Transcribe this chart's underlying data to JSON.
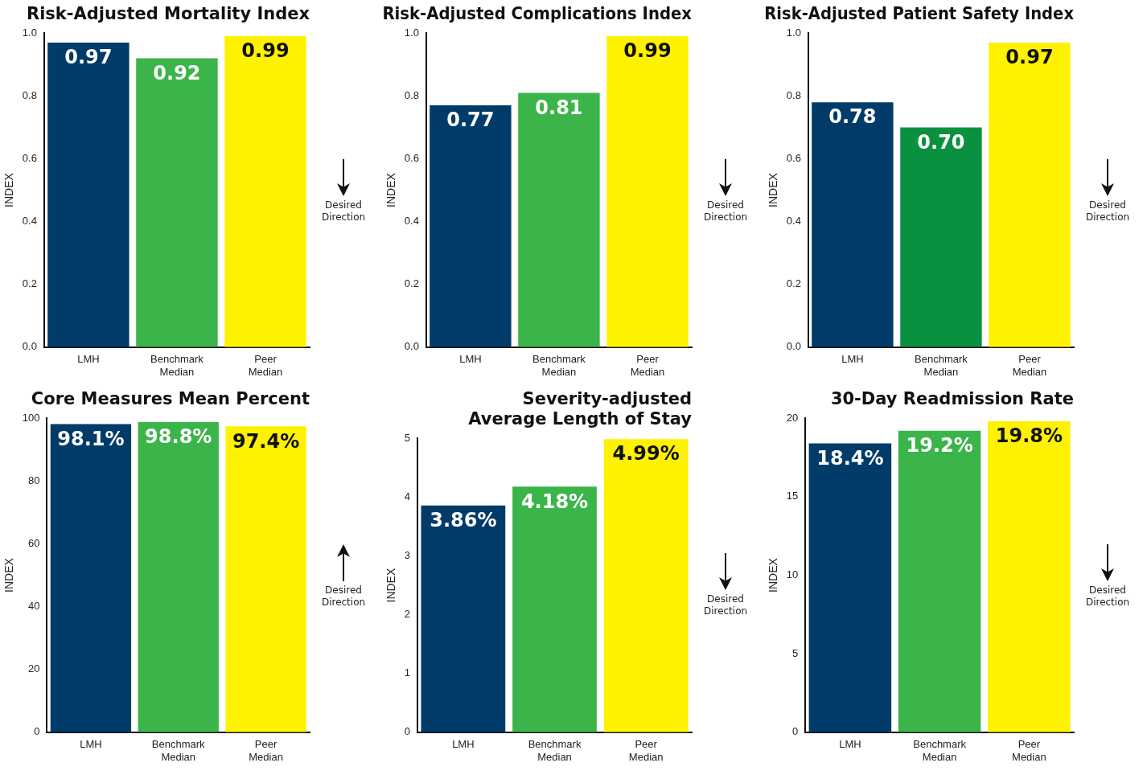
{
  "chart_data": [
    {
      "type": "bar",
      "title": "Risk-Adjusted Mortality Index",
      "ylabel": "INDEX",
      "categories": [
        "LMH",
        "Benchmark Median",
        "Peer Median"
      ],
      "values": [
        0.97,
        0.92,
        0.99
      ],
      "colors": [
        "#003b69",
        "#3bb54a",
        "#fff200"
      ],
      "ylim": [
        0,
        1
      ],
      "yticks": [
        {
          "value": 0,
          "label": "0.0"
        },
        {
          "value": 0.2,
          "label": "0.2"
        },
        {
          "value": 0.4,
          "label": "0.4"
        },
        {
          "value": 0.6,
          "label": "0.6"
        },
        {
          "value": 0.8,
          "label": "0.8"
        },
        {
          "value": 1,
          "label": "1.0"
        }
      ],
      "value_labels": [
        "0.97",
        "0.92",
        "0.99"
      ],
      "annotations": [
        "Desired Direction"
      ],
      "grid": false,
      "legend": false
    },
    {
      "type": "bar",
      "title": "Risk-Adjusted Complications Index",
      "ylabel": "INDEX",
      "categories": [
        "LMH",
        "Benchmark Median",
        "Peer Median"
      ],
      "values": [
        0.77,
        0.81,
        0.99
      ],
      "colors": [
        "#003b69",
        "#3bb54a",
        "#fff200"
      ],
      "ylim": [
        0,
        1
      ],
      "yticks": [
        {
          "value": 0,
          "label": "0.0"
        },
        {
          "value": 0.2,
          "label": "0.2"
        },
        {
          "value": 0.4,
          "label": "0.4"
        },
        {
          "value": 0.6,
          "label": "0.6"
        },
        {
          "value": 0.8,
          "label": "0.8"
        },
        {
          "value": 1,
          "label": "1.0"
        }
      ],
      "value_labels": [
        "0.77",
        "0.81",
        "0.99"
      ],
      "annotations": [
        "Desired Direction"
      ],
      "grid": false,
      "legend": false
    },
    {
      "type": "bar",
      "title": "Risk-Adjusted Patient Safety Index",
      "ylabel": "INDEX",
      "categories": [
        "LMH",
        "Benchmark Median",
        "Peer Median"
      ],
      "values": [
        0.78,
        0.7,
        0.97
      ],
      "colors": [
        "#003b69",
        "#0a9140",
        "#fff200"
      ],
      "ylim": [
        0,
        1
      ],
      "yticks": [
        {
          "value": 0,
          "label": "0.0"
        },
        {
          "value": 0.2,
          "label": "0.2"
        },
        {
          "value": 0.4,
          "label": "0.4"
        },
        {
          "value": 0.6,
          "label": "0.6"
        },
        {
          "value": 0.8,
          "label": "0.8"
        },
        {
          "value": 1,
          "label": "1.0"
        }
      ],
      "value_labels": [
        "0.78",
        "0.70",
        "0.97"
      ],
      "annotations": [
        "Desired Direction"
      ],
      "grid": false,
      "legend": false
    },
    {
      "type": "bar",
      "title": "Core Measures Mean Percent",
      "ylabel": "INDEX",
      "categories": [
        "LMH",
        "Benchmark Median",
        "Peer Median"
      ],
      "values": [
        98.1,
        98.8,
        97.4
      ],
      "colors": [
        "#003b69",
        "#3bb54a",
        "#fff200"
      ],
      "ylim": [
        0,
        100
      ],
      "yticks": [
        0,
        20,
        40,
        60,
        80,
        100
      ],
      "value_labels": [
        "98.1%",
        "98.8%",
        "97.4%"
      ],
      "annotations": [
        "Desired Direction"
      ],
      "grid": false,
      "legend": false
    },
    {
      "type": "bar",
      "title": "Severity-adjusted Average Length of Stay",
      "ylabel": "INDEX",
      "categories": [
        "LMH",
        "Benchmark Median",
        "Peer Median"
      ],
      "values": [
        3.86,
        4.18,
        4.99
      ],
      "colors": [
        "#003b69",
        "#3bb54a",
        "#fff200"
      ],
      "ylim": [
        0,
        5
      ],
      "yticks": [
        0,
        1,
        2,
        3,
        4,
        5
      ],
      "value_labels": [
        "3.86%",
        "4.18%",
        "4.99%"
      ],
      "annotations": [
        "Desired Direction"
      ],
      "grid": false,
      "legend": false
    },
    {
      "type": "bar",
      "title": "30-Day Readmission Rate",
      "ylabel": "INDEX",
      "categories": [
        "LMH",
        "Benchmark Median",
        "Peer Median"
      ],
      "values": [
        18.4,
        19.2,
        19.8
      ],
      "colors": [
        "#003b69",
        "#3bb54a",
        "#fff200"
      ],
      "ylim": [
        0,
        20
      ],
      "yticks": [
        0,
        5,
        10,
        15,
        20
      ],
      "value_labels": [
        "18.4%",
        "19.2%",
        "19.8%"
      ],
      "annotations": [
        "Desired Direction"
      ],
      "grid": false,
      "legend": false
    }
  ]
}
